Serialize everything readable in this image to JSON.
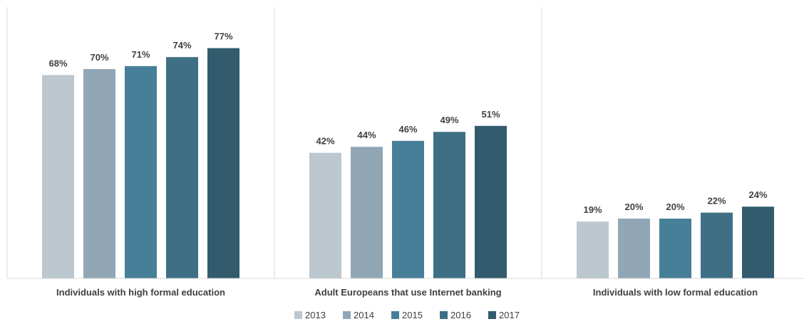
{
  "chart_data": {
    "type": "bar",
    "title": "",
    "xlabel": "",
    "ylabel": "",
    "ylim": [
      0,
      85
    ],
    "grid": false,
    "legend_position": "bottom",
    "value_suffix": "%",
    "categories": [
      "Individuals with high formal education",
      "Adult Europeans that use Internet banking",
      "Individuals with low formal education"
    ],
    "series": [
      {
        "name": "2013",
        "color": "#bcc7cf",
        "values": [
          68,
          42,
          19
        ]
      },
      {
        "name": "2014",
        "color": "#91a7b5",
        "values": [
          70,
          44,
          20
        ]
      },
      {
        "name": "2015",
        "color": "#477f99",
        "values": [
          71,
          46,
          20
        ]
      },
      {
        "name": "2016",
        "color": "#3f6f85",
        "values": [
          74,
          49,
          22
        ]
      },
      {
        "name": "2017",
        "color": "#325b6e",
        "values": [
          77,
          51,
          24
        ]
      }
    ]
  }
}
